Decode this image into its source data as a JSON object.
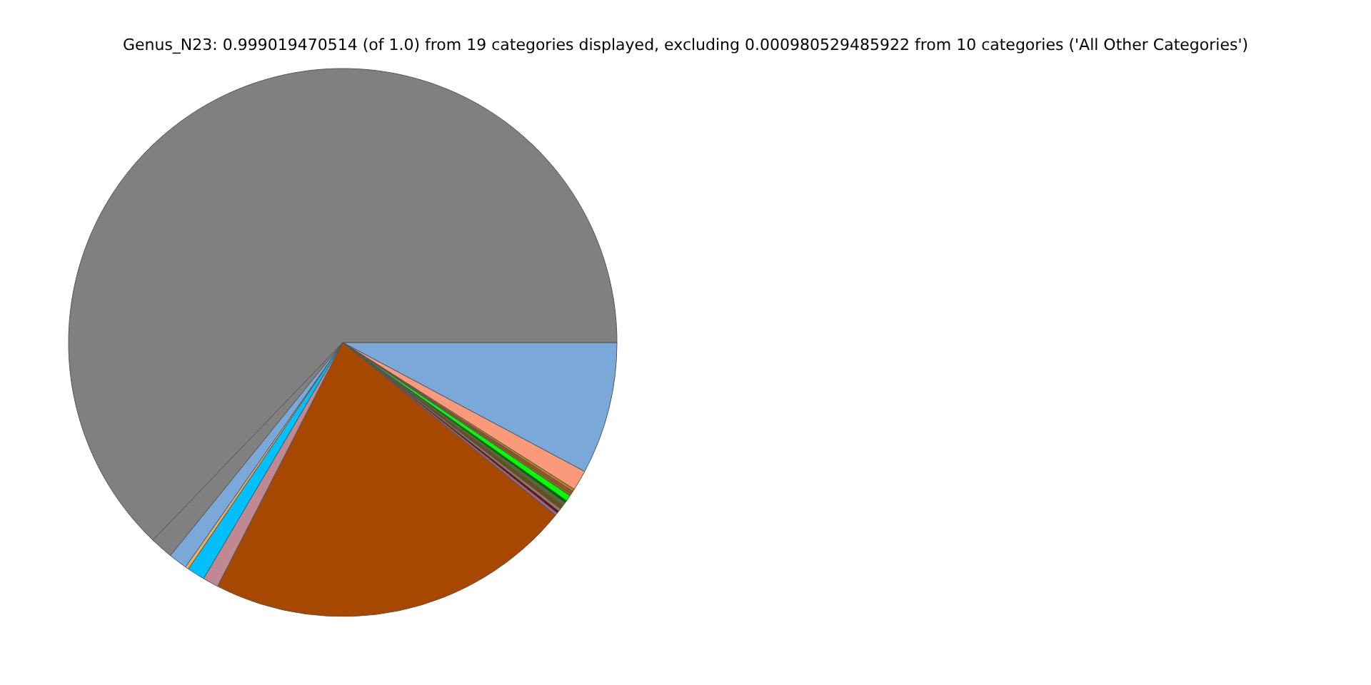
{
  "chart_data": {
    "type": "pie",
    "title": "Genus_N23: 0.999019470514 (of 1.0) from 19 categories displayed, excluding 0.000980529485922 from 10 categories ('All Other Categories')",
    "categories": [
      null,
      null,
      null,
      null,
      null,
      null,
      null,
      null,
      null,
      null,
      null,
      null,
      null,
      null,
      null,
      null,
      null,
      null,
      null
    ],
    "values": [
      7.8,
      1.2,
      0.15,
      0.15,
      0.15,
      0.35,
      0.15,
      0.2,
      0.25,
      0.15,
      0.15,
      0.15,
      21.7,
      0.92,
      1.05,
      0.2,
      1.1,
      1.36,
      62.82
    ],
    "colors": [
      "#7aa8d8",
      "#fa9a7a",
      "#b8860b",
      "#a0522d",
      "#8b6914",
      "#00ff00",
      "#006400",
      "#556b2f",
      "#6b4e16",
      "#808080",
      "#8b0000",
      "#8a6f9a",
      "#a64800",
      "#c08890",
      "#00bfff",
      "#e8b05a",
      "#7aa8d8",
      "#808080",
      "#808080"
    ],
    "legend": false
  }
}
